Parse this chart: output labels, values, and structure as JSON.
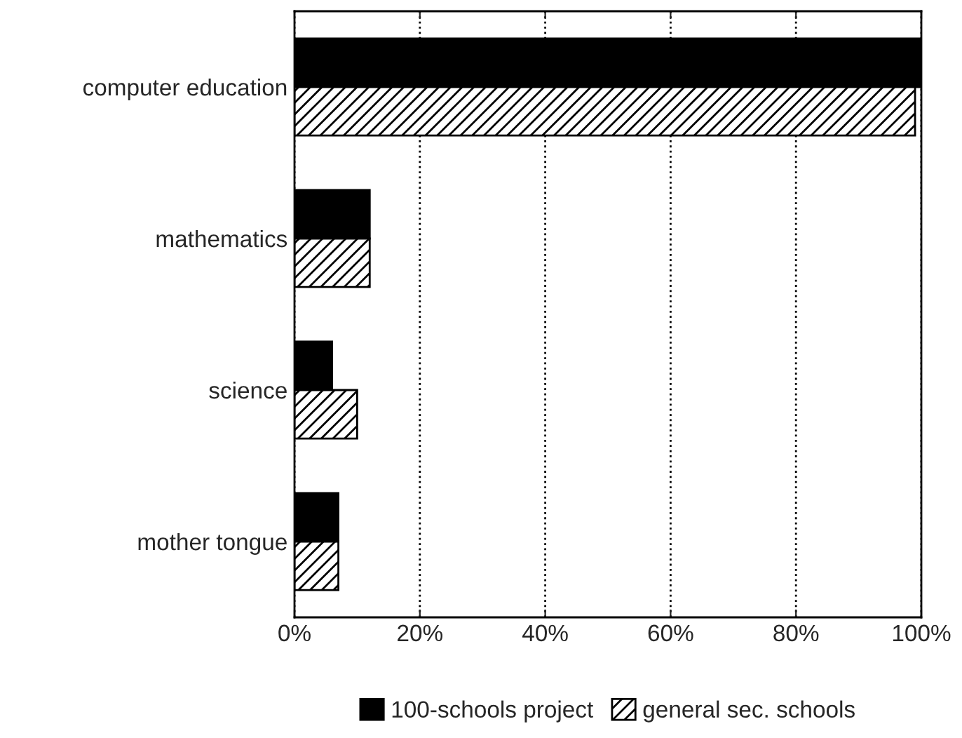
{
  "chart_data": {
    "type": "bar",
    "orientation": "horizontal",
    "categories": [
      "computer education",
      "mathematics",
      "science",
      "mother tongue"
    ],
    "series": [
      {
        "name": "100-schools project",
        "color": "#000000",
        "values": [
          100,
          12,
          6,
          7
        ]
      },
      {
        "name": "general sec. schools",
        "color": "#000000",
        "values": [
          99,
          12,
          10,
          7
        ]
      }
    ],
    "xlim": [
      0,
      100
    ],
    "xticks": [
      {
        "value": 0,
        "label": "0%"
      },
      {
        "value": 20,
        "label": "20%"
      },
      {
        "value": 40,
        "label": "40%"
      },
      {
        "value": 60,
        "label": "60%"
      },
      {
        "value": 80,
        "label": "80%"
      },
      {
        "value": 100,
        "label": "100%"
      }
    ],
    "grid": "x",
    "legend": "bottom"
  }
}
